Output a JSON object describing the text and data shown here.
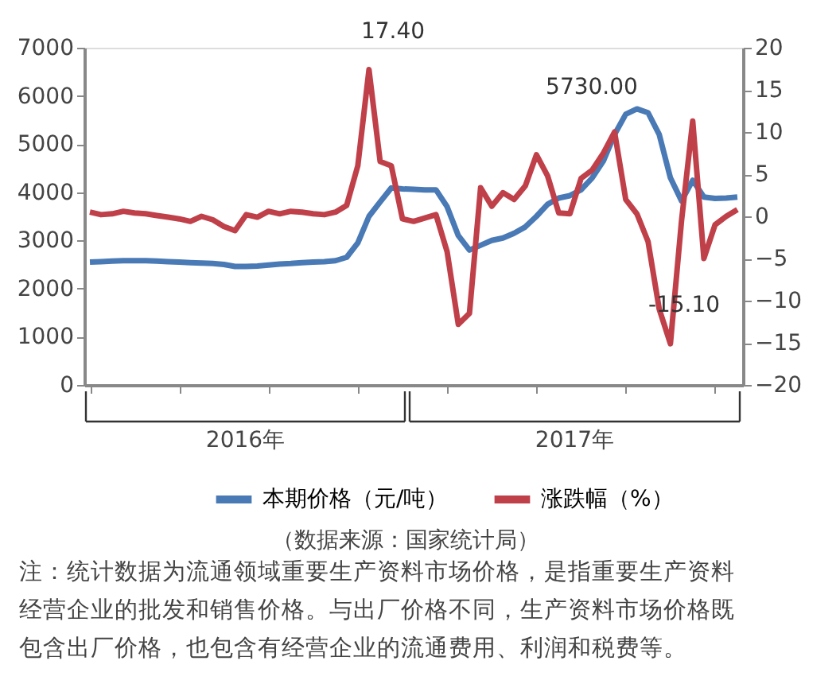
{
  "chart_data": {
    "type": "line",
    "categories": [
      null,
      null,
      null,
      null,
      null,
      null,
      null,
      null,
      null,
      null,
      null,
      null,
      null,
      null,
      null,
      null,
      null,
      null,
      null,
      null,
      null,
      null,
      null,
      null,
      null,
      null,
      null,
      null,
      null,
      null,
      null,
      null,
      null,
      null,
      null,
      null,
      null,
      null,
      null,
      null,
      null,
      null,
      null,
      null,
      null,
      null,
      null,
      null,
      null,
      null,
      null,
      null,
      null,
      null,
      null,
      null,
      null,
      null,
      null
    ],
    "series": [
      {
        "name": "本期价格（元/吨）",
        "color": "#4a7ab5",
        "values": [
          2550,
          2560,
          2570,
          2580,
          2580,
          2580,
          2570,
          2560,
          2550,
          2540,
          2530,
          2520,
          2500,
          2460,
          2460,
          2470,
          2490,
          2510,
          2520,
          2540,
          2550,
          2560,
          2580,
          2650,
          2950,
          3500,
          3800,
          4090,
          4070,
          4060,
          4050,
          4050,
          3700,
          3100,
          2800,
          2900,
          3000,
          3050,
          3150,
          3280,
          3500,
          3750,
          3880,
          3930,
          4050,
          4300,
          4650,
          5200,
          5620,
          5730,
          5650,
          5200,
          4300,
          3820,
          4250,
          3900,
          3870,
          3880,
          3900
        ]
      },
      {
        "name": "涨跌幅（%）",
        "color": "#c0404a",
        "axis": "y2",
        "values": [
          0.5,
          0.2,
          0.3,
          0.6,
          0.4,
          0.3,
          0.1,
          -0.1,
          -0.3,
          -0.6,
          0,
          -0.4,
          -1.2,
          -1.7,
          0.2,
          -0.1,
          0.6,
          0.3,
          0.6,
          0.5,
          0.3,
          0.2,
          0.5,
          1.3,
          6.0,
          17.4,
          6.5,
          6.0,
          -0.3,
          -0.6,
          -0.2,
          0.2,
          -4.2,
          -12.8,
          -11.5,
          3.4,
          1.2,
          2.8,
          2.0,
          3.6,
          7.3,
          4.8,
          0.4,
          0.3,
          4.5,
          5.5,
          7.5,
          10.0,
          2.0,
          0.3,
          -3.0,
          -11.0,
          -15.1,
          -0.5,
          11.3,
          -5.0,
          -1.0,
          0.0,
          0.8
        ]
      }
    ],
    "ylim": [
      0,
      7000
    ],
    "yticks": [
      0,
      1000,
      2000,
      3000,
      4000,
      5000,
      6000,
      7000
    ],
    "y2lim": [
      -20,
      20
    ],
    "y2ticks": [
      -20,
      -15,
      -10,
      -5,
      0,
      5,
      10,
      15,
      20
    ],
    "legend": "bottom",
    "marker": "none",
    "line_style": "solid",
    "annotations": [
      "2016年",
      "2017年",
      "（数据来源：国家统计局）",
      "注：统计数据为流通领域重要生产资料市场价格，是指重要生产资料经营企业的批发和销售价格。与出厂价格不同，生产资料市场价格既包含出厂价格，也包含有经营企业的流通费用、利润和税费等。",
      "17.40",
      "5730.00",
      "-15.10"
    ]
  }
}
